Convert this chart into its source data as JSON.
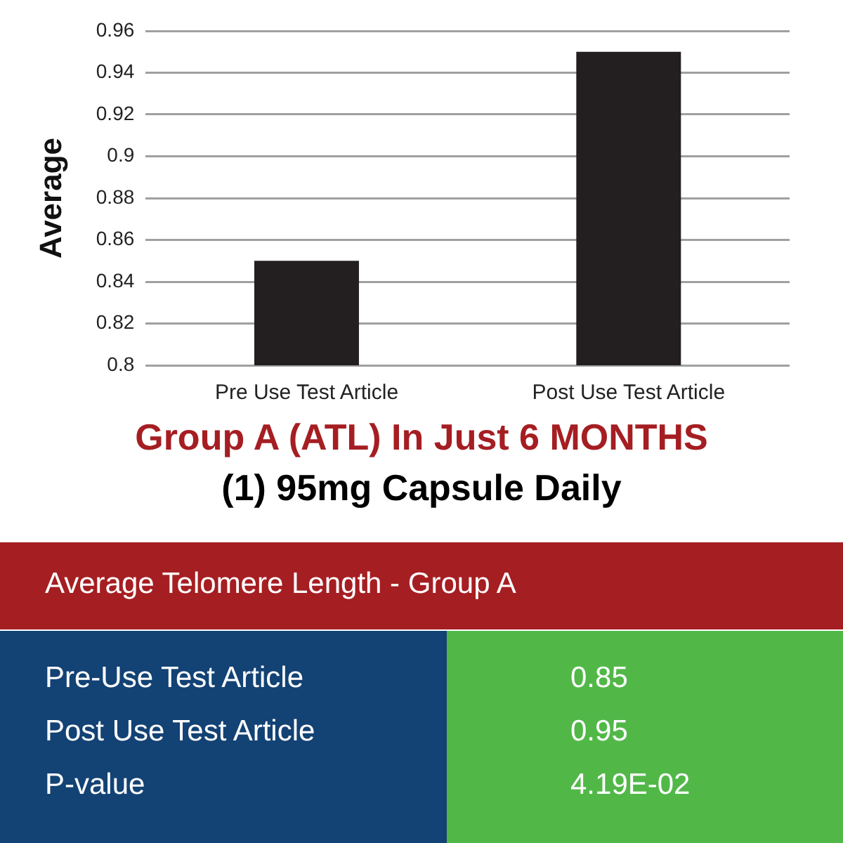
{
  "chart_data": {
    "type": "bar",
    "title": "Group A (ATL) In Just 6 MONTHS",
    "subtitle": "(1) 95mg Capsule Daily",
    "ylabel": "Average",
    "categories": [
      "Pre Use Test Article",
      "Post Use Test Article"
    ],
    "values": [
      0.85,
      0.95
    ],
    "color": "#231f20",
    "ylim": [
      0.8,
      0.96
    ],
    "yticks": [
      0.8,
      0.82,
      0.84,
      0.86,
      0.88,
      0.9,
      0.92,
      0.94,
      0.96
    ],
    "grid": "y",
    "annotations": [
      "Average Telomere Length - Group A",
      "Pre-Use Test Article",
      "0.85",
      "Post Use Test Article",
      "0.95",
      "P-value",
      "4.19E-02"
    ]
  }
}
